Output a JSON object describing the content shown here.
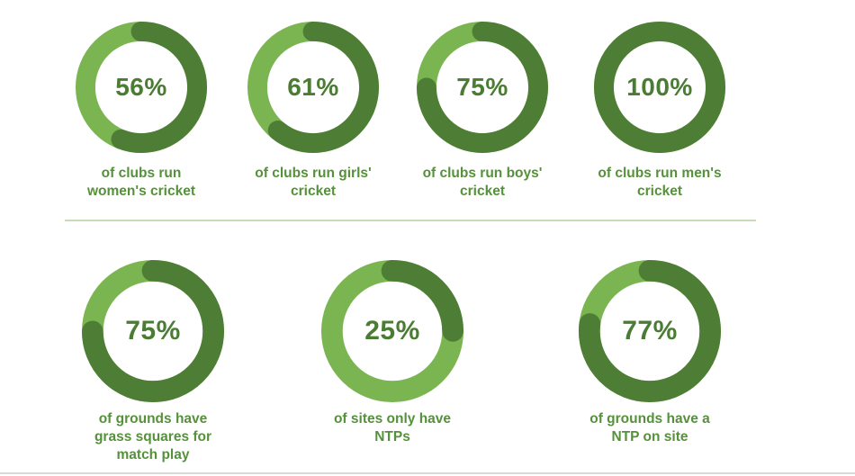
{
  "colors": {
    "arc_dark_green": "#4e7d35",
    "arc_light_green": "#7ab551",
    "percent_text": "#4a7c33",
    "caption_text": "#55913a",
    "separator_line": "#c8dcb4",
    "bottom_edge_line": "#d8d8d8",
    "background": "#ffffff"
  },
  "chart_data": [
    {
      "type": "pie",
      "style": "donut",
      "row": 1,
      "percent": 56,
      "center_label": "56%",
      "caption": "of clubs run women's cricket",
      "caption_lines": [
        "of clubs run",
        "women's cricket"
      ],
      "slices": [
        {
          "name": "highlighted",
          "value": 56,
          "color": "#4e7d35"
        },
        {
          "name": "remainder",
          "value": 44,
          "color": "#7ab551"
        }
      ]
    },
    {
      "type": "pie",
      "style": "donut",
      "row": 1,
      "percent": 61,
      "center_label": "61%",
      "caption": "of clubs run girls' cricket",
      "caption_lines": [
        "of clubs run girls'",
        "cricket"
      ],
      "slices": [
        {
          "name": "highlighted",
          "value": 61,
          "color": "#4e7d35"
        },
        {
          "name": "remainder",
          "value": 39,
          "color": "#7ab551"
        }
      ]
    },
    {
      "type": "pie",
      "style": "donut",
      "row": 1,
      "percent": 75,
      "center_label": "75%",
      "caption": "of clubs run boys' cricket",
      "caption_lines": [
        "of clubs run boys'",
        "cricket"
      ],
      "slices": [
        {
          "name": "highlighted",
          "value": 75,
          "color": "#4e7d35"
        },
        {
          "name": "remainder",
          "value": 25,
          "color": "#7ab551"
        }
      ]
    },
    {
      "type": "pie",
      "style": "donut",
      "row": 1,
      "percent": 100,
      "center_label": "100%",
      "caption": "of clubs run men's cricket",
      "caption_lines": [
        "of clubs run men's",
        "cricket"
      ],
      "slices": [
        {
          "name": "highlighted",
          "value": 100,
          "color": "#4e7d35"
        },
        {
          "name": "remainder",
          "value": 0,
          "color": "#7ab551"
        }
      ]
    },
    {
      "type": "pie",
      "style": "donut",
      "row": 2,
      "percent": 75,
      "center_label": "75%",
      "caption": "of grounds have grass squares for match play",
      "caption_lines": [
        "of grounds have",
        "grass squares for",
        "match play"
      ],
      "slices": [
        {
          "name": "highlighted",
          "value": 75,
          "color": "#4e7d35"
        },
        {
          "name": "remainder",
          "value": 25,
          "color": "#7ab551"
        }
      ]
    },
    {
      "type": "pie",
      "style": "donut",
      "row": 2,
      "percent": 25,
      "center_label": "25%",
      "caption": "of sites only have NTPs",
      "caption_lines": [
        "of sites only have",
        "NTPs"
      ],
      "slices": [
        {
          "name": "highlighted",
          "value": 25,
          "color": "#4e7d35"
        },
        {
          "name": "remainder",
          "value": 75,
          "color": "#7ab551"
        }
      ]
    },
    {
      "type": "pie",
      "style": "donut",
      "row": 2,
      "percent": 77,
      "center_label": "77%",
      "caption": "of grounds have a NTP on site",
      "caption_lines": [
        "of grounds have a",
        "NTP on site"
      ],
      "slices": [
        {
          "name": "highlighted",
          "value": 77,
          "color": "#4e7d35"
        },
        {
          "name": "remainder",
          "value": 23,
          "color": "#7ab551"
        }
      ]
    }
  ]
}
